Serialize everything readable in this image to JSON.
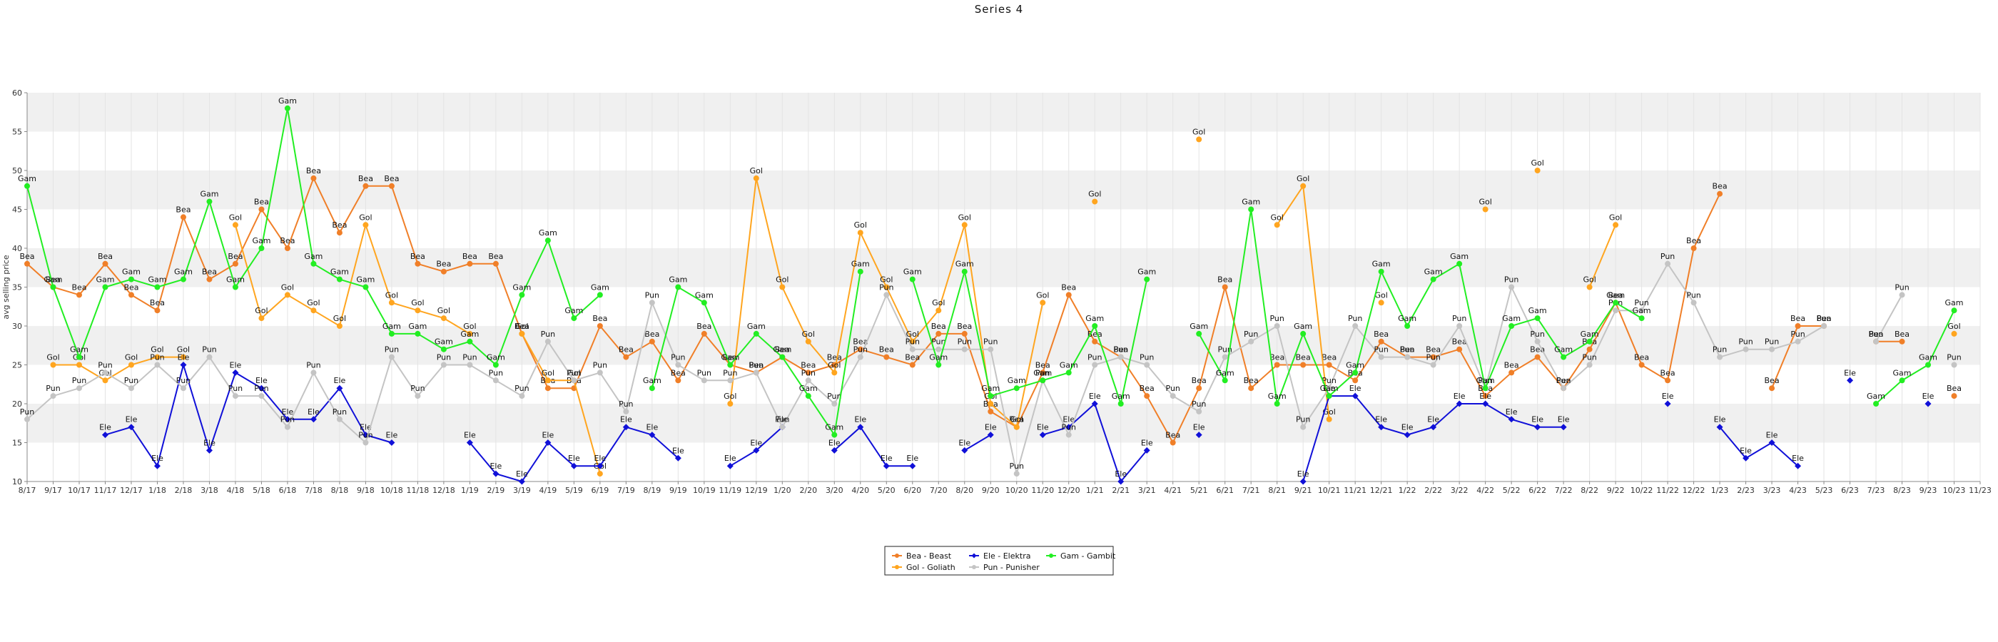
{
  "chart_data": {
    "type": "line",
    "title": "Series 4",
    "xlabel": "",
    "ylabel": "avg selling price",
    "ylim": [
      10,
      60
    ],
    "yticks": [
      10,
      15,
      20,
      25,
      30,
      35,
      40,
      45,
      50,
      55,
      60
    ],
    "grid": "horizontal bands",
    "legend_position": "bottom-center",
    "x": [
      "8/17",
      "9/17",
      "10/17",
      "11/17",
      "12/17",
      "1/18",
      "2/18",
      "3/18",
      "4/18",
      "5/18",
      "6/18",
      "7/18",
      "8/18",
      "9/18",
      "10/18",
      "11/18",
      "12/18",
      "1/19",
      "2/19",
      "3/19",
      "4/19",
      "5/19",
      "6/19",
      "7/19",
      "8/19",
      "9/19",
      "10/19",
      "11/19",
      "12/19",
      "1/20",
      "2/20",
      "3/20",
      "4/20",
      "5/20",
      "6/20",
      "7/20",
      "8/20",
      "9/20",
      "10/20",
      "11/20",
      "12/20",
      "1/21",
      "2/21",
      "3/21",
      "4/21",
      "5/21",
      "6/21",
      "7/21",
      "8/21",
      "9/21",
      "10/21",
      "11/21",
      "12/21",
      "1/22",
      "2/22",
      "3/22",
      "4/22",
      "5/22",
      "6/22",
      "7/22",
      "8/22",
      "9/22",
      "10/22",
      "11/22",
      "12/22",
      "1/23",
      "2/23",
      "3/23",
      "4/23",
      "5/23",
      "6/23",
      "7/23",
      "8/23",
      "9/23",
      "10/23",
      "11/23"
    ],
    "series": [
      {
        "name": "Bea - Beast",
        "label": "Bea",
        "color": "#f07f28",
        "marker": "circle",
        "values": [
          38,
          35,
          34,
          38,
          34,
          32,
          44,
          36,
          38,
          45,
          40,
          49,
          42,
          48,
          48,
          38,
          37,
          38,
          38,
          29,
          22,
          22,
          30,
          26,
          28,
          23,
          29,
          25,
          24,
          26,
          24,
          25,
          27,
          26,
          25,
          29,
          29,
          19,
          17,
          24,
          34,
          28,
          26,
          21,
          15,
          22,
          35,
          22,
          25,
          25,
          25,
          23,
          28,
          26,
          26,
          27,
          21,
          24,
          26,
          22,
          27,
          33,
          25,
          23,
          40,
          47,
          null,
          22,
          30,
          30,
          null,
          28,
          28,
          null,
          21,
          null
        ]
      },
      {
        "name": "Gol - Goliath",
        "label": "Gol",
        "color": "#ffa51f",
        "marker": "circle",
        "values": [
          null,
          25,
          25,
          23,
          25,
          26,
          26,
          null,
          43,
          31,
          34,
          32,
          30,
          43,
          33,
          32,
          31,
          29,
          null,
          29,
          23,
          23,
          11,
          null,
          null,
          null,
          null,
          20,
          49,
          35,
          28,
          24,
          42,
          35,
          28,
          32,
          43,
          20,
          17,
          33,
          null,
          46,
          null,
          null,
          null,
          54,
          null,
          null,
          43,
          48,
          18,
          null,
          33,
          null,
          null,
          null,
          45,
          null,
          50,
          null,
          35,
          43,
          null,
          null,
          null,
          null,
          null,
          null,
          null,
          null,
          null,
          null,
          null,
          null,
          29,
          null
        ]
      },
      {
        "name": "Ele - Elektra",
        "label": "Ele",
        "color": "#1010d8",
        "marker": "diamond",
        "values": [
          null,
          null,
          null,
          16,
          17,
          12,
          25,
          14,
          24,
          22,
          18,
          18,
          22,
          16,
          15,
          null,
          null,
          15,
          11,
          10,
          15,
          12,
          12,
          17,
          16,
          13,
          null,
          12,
          14,
          17,
          null,
          14,
          17,
          12,
          12,
          null,
          14,
          16,
          null,
          16,
          17,
          20,
          10,
          14,
          null,
          16,
          null,
          null,
          null,
          10,
          21,
          21,
          17,
          16,
          17,
          20,
          20,
          18,
          17,
          17,
          null,
          null,
          null,
          20,
          null,
          17,
          13,
          15,
          12,
          null,
          23,
          null,
          null,
          20,
          null,
          null
        ]
      },
      {
        "name": "Pun - Punisher",
        "label": "Pun",
        "color": "#c4c4c4",
        "marker": "circle",
        "values": [
          18,
          21,
          22,
          24,
          22,
          25,
          22,
          26,
          21,
          21,
          17,
          24,
          18,
          15,
          26,
          21,
          25,
          25,
          23,
          21,
          28,
          23,
          24,
          19,
          33,
          25,
          23,
          23,
          24,
          17,
          23,
          20,
          26,
          34,
          27,
          27,
          27,
          27,
          11,
          23,
          16,
          25,
          26,
          25,
          21,
          19,
          26,
          28,
          30,
          17,
          22,
          30,
          26,
          26,
          25,
          30,
          22,
          35,
          28,
          22,
          25,
          32,
          32,
          38,
          33,
          26,
          27,
          27,
          28,
          30,
          null,
          28,
          34,
          null,
          25,
          null
        ]
      },
      {
        "name": "Gam - Gambit",
        "label": "Gam",
        "color": "#22ee22",
        "marker": "circle",
        "values": [
          48,
          35,
          26,
          35,
          36,
          35,
          36,
          46,
          35,
          40,
          58,
          38,
          36,
          35,
          29,
          29,
          27,
          28,
          25,
          34,
          41,
          31,
          34,
          null,
          22,
          35,
          33,
          25,
          29,
          26,
          21,
          16,
          37,
          null,
          36,
          25,
          37,
          21,
          22,
          23,
          24,
          30,
          20,
          36,
          null,
          29,
          23,
          45,
          20,
          29,
          21,
          24,
          37,
          30,
          36,
          38,
          22,
          30,
          31,
          26,
          28,
          33,
          31,
          null,
          null,
          null,
          null,
          null,
          null,
          null,
          null,
          20,
          23,
          25,
          32,
          null
        ]
      }
    ]
  }
}
